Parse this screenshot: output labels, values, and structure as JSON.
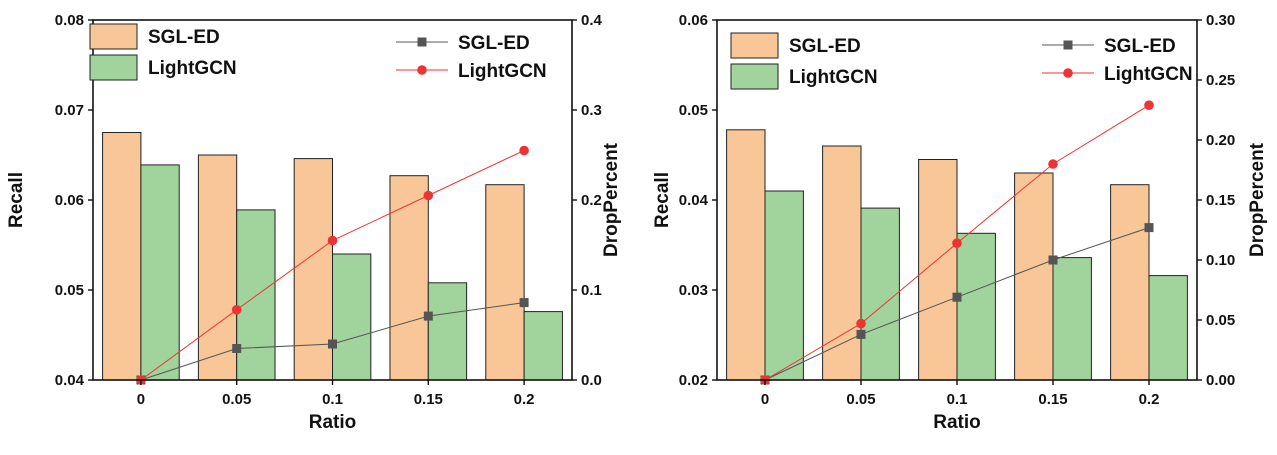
{
  "chart_data": [
    {
      "type": "bar+line",
      "title": "",
      "xlabel": "Ratio",
      "ylabel": "Recall",
      "y2label": "DropPercent",
      "categories": [
        "0",
        "0.05",
        "0.1",
        "0.15",
        "0.2"
      ],
      "ylim": [
        0.04,
        0.08
      ],
      "yticks": [
        "0.04",
        "0.05",
        "0.06",
        "0.07",
        "0.08"
      ],
      "y2lim": [
        0.0,
        0.4
      ],
      "y2ticks": [
        "0.0",
        "0.1",
        "0.2",
        "0.3",
        "0.4"
      ],
      "bar_series": [
        {
          "name": "SGL-ED",
          "color": "#f8c697",
          "values": [
            0.0675,
            0.065,
            0.0646,
            0.0627,
            0.0617
          ]
        },
        {
          "name": "LightGCN",
          "color": "#a0d49c",
          "values": [
            0.0639,
            0.0589,
            0.054,
            0.0508,
            0.0476
          ]
        }
      ],
      "line_series": [
        {
          "name": "SGL-ED",
          "color": "#555555",
          "marker": "square",
          "values": [
            0.0,
            0.035,
            0.04,
            0.071,
            0.086
          ]
        },
        {
          "name": "LightGCN",
          "color": "#ee3333",
          "marker": "circle",
          "values": [
            0.0,
            0.078,
            0.155,
            0.205,
            0.255
          ]
        }
      ]
    },
    {
      "type": "bar+line",
      "title": "",
      "xlabel": "Ratio",
      "ylabel": "Recall",
      "y2label": "DropPercent",
      "categories": [
        "0",
        "0.05",
        "0.1",
        "0.15",
        "0.2"
      ],
      "ylim": [
        0.02,
        0.06
      ],
      "yticks": [
        "0.02",
        "0.03",
        "0.04",
        "0.05",
        "0.06"
      ],
      "y2lim": [
        0.0,
        0.3
      ],
      "y2ticks": [
        "0.00",
        "0.05",
        "0.10",
        "0.15",
        "0.20",
        "0.25",
        "0.30"
      ],
      "bar_series": [
        {
          "name": "SGL-ED",
          "color": "#f8c697",
          "values": [
            0.0478,
            0.046,
            0.0445,
            0.043,
            0.0417
          ]
        },
        {
          "name": "LightGCN",
          "color": "#a0d49c",
          "values": [
            0.041,
            0.0391,
            0.0363,
            0.0336,
            0.0316
          ]
        }
      ],
      "line_series": [
        {
          "name": "SGL-ED",
          "color": "#555555",
          "marker": "square",
          "values": [
            0.0,
            0.038,
            0.069,
            0.1,
            0.127
          ]
        },
        {
          "name": "LightGCN",
          "color": "#ee3333",
          "marker": "circle",
          "values": [
            0.0,
            0.047,
            0.114,
            0.18,
            0.229
          ]
        }
      ]
    }
  ]
}
